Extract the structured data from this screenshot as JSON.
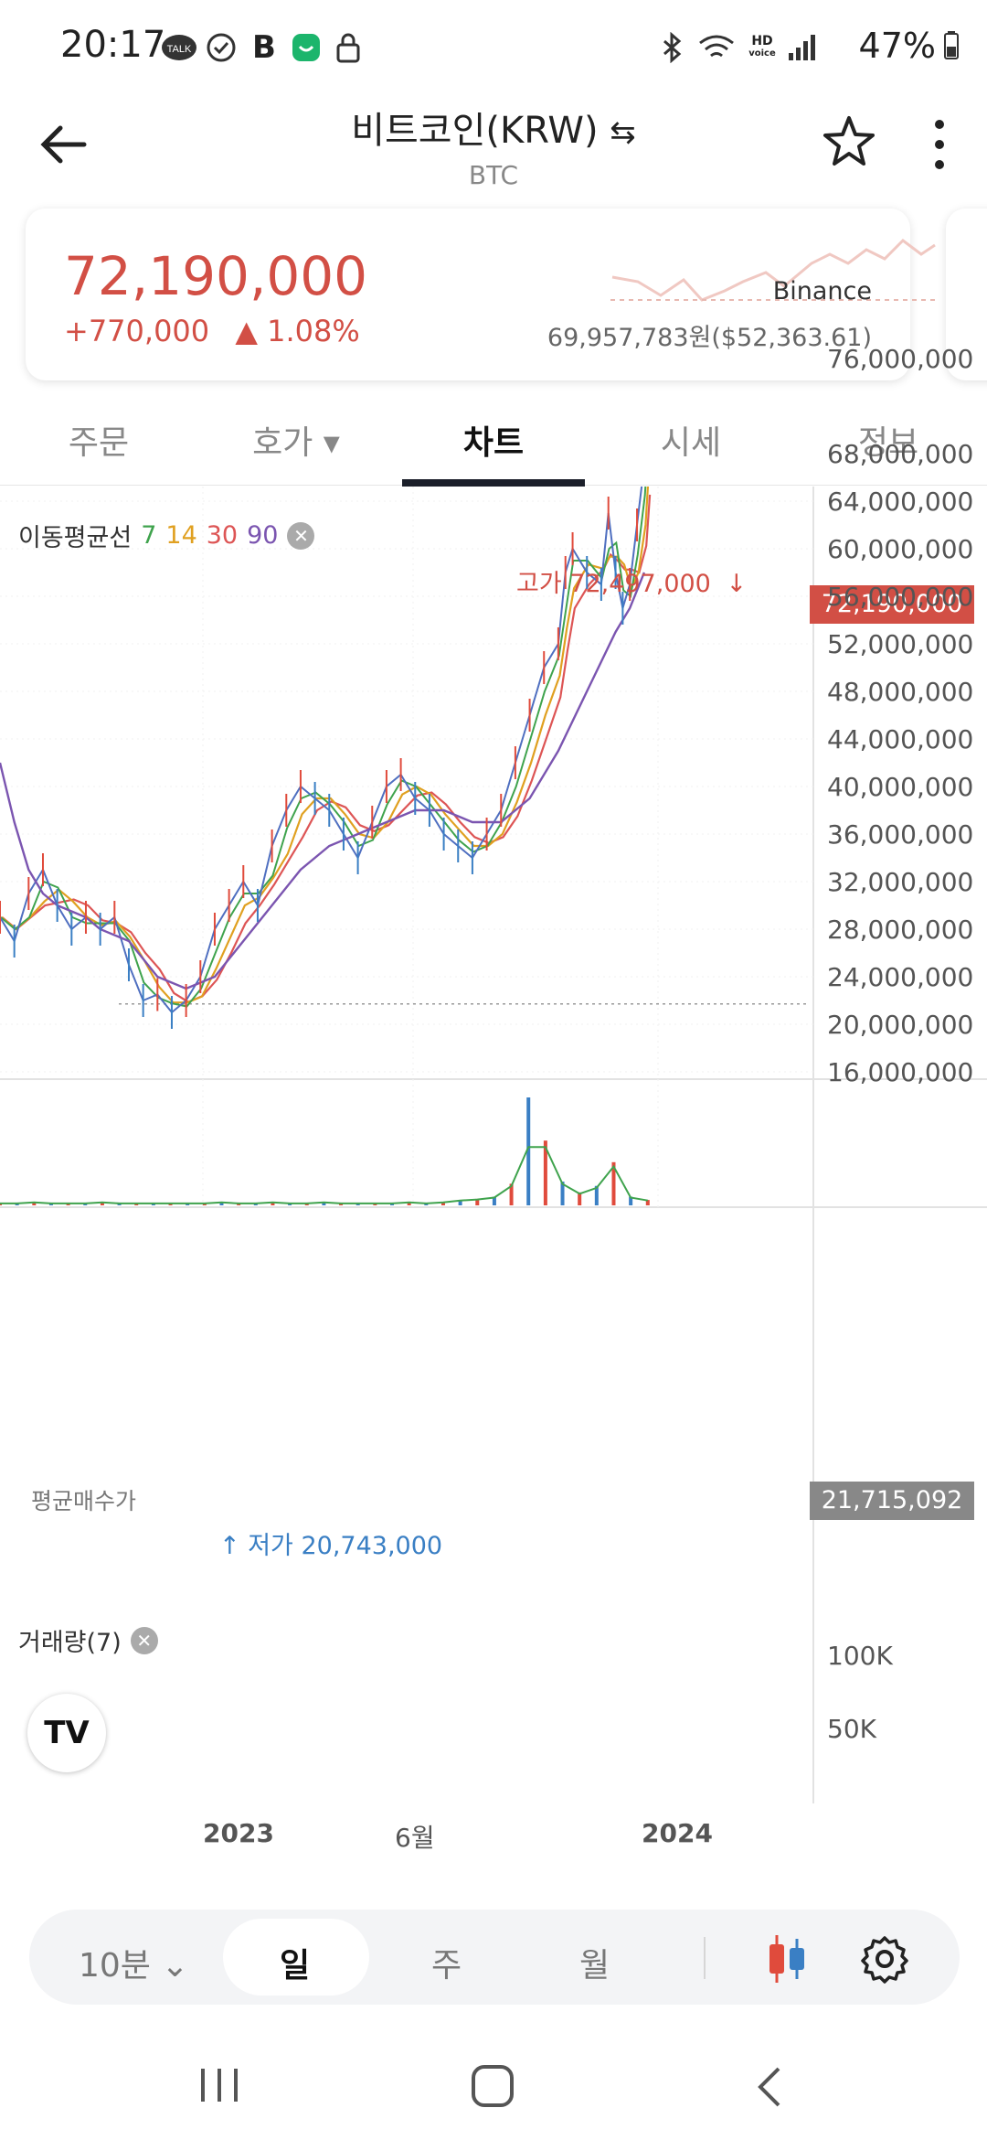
{
  "status_bar": {
    "time": "20:17",
    "battery": "47%",
    "icons": [
      "talk-icon",
      "check-circle-icon",
      "b-icon",
      "chat-icon",
      "lock-icon",
      "bluetooth-icon",
      "wifi-icon",
      "hd-voice-icon",
      "signal-icon",
      "battery-icon"
    ]
  },
  "header": {
    "title": "비트코인(KRW)",
    "subtitle": "BTC"
  },
  "price_card": {
    "price": "72,190,000",
    "change": "+770,000",
    "change_pct": "▲ 1.08%",
    "exchange": "Binance",
    "ref_price": "69,957,783원($52,363.61)",
    "colors": {
      "up": "#d24f45"
    }
  },
  "tabs": [
    {
      "label": "주문"
    },
    {
      "label": "호가 ▾"
    },
    {
      "label": "차트"
    },
    {
      "label": "시세"
    },
    {
      "label": "정보"
    }
  ],
  "chart_data": {
    "type": "line",
    "series": [
      {
        "name": "7",
        "color": "#3fa34d"
      },
      {
        "name": "14",
        "color": "#e0a020"
      },
      {
        "name": "30",
        "color": "#d55",
        "values_note": ""
      },
      {
        "name": "90",
        "color": "#7b55b0"
      }
    ],
    "x": [
      "2023",
      "6월",
      "2024"
    ],
    "y_ticks": [
      "76,000,000",
      "68,000,000",
      "64,000,000",
      "60,000,000",
      "56,000,000",
      "52,000,000",
      "48,000,000",
      "44,000,000",
      "40,000,000",
      "36,000,000",
      "32,000,000",
      "28,000,000",
      "24,000,000",
      "20,000,000",
      "16,000,000"
    ],
    "ylim": [
      16000000,
      76000000
    ],
    "current_price": "72,190,000",
    "avg_buy_price": "21,715,092",
    "high_label": "고가 72,497,000",
    "low_label": "저가 20,743,000",
    "avg_label": "평균매수가",
    "ma_label": "이동평균선",
    "volume_label": "거래량(7)",
    "volume_ticks": [
      "100K",
      "50K"
    ],
    "price_path": [
      [
        0.0,
        29
      ],
      [
        0.02,
        27
      ],
      [
        0.04,
        31
      ],
      [
        0.06,
        33
      ],
      [
        0.08,
        30
      ],
      [
        0.1,
        28
      ],
      [
        0.12,
        29
      ],
      [
        0.14,
        28
      ],
      [
        0.16,
        29
      ],
      [
        0.18,
        25
      ],
      [
        0.2,
        22
      ],
      [
        0.22,
        22.5
      ],
      [
        0.24,
        21
      ],
      [
        0.26,
        22
      ],
      [
        0.28,
        24
      ],
      [
        0.3,
        28
      ],
      [
        0.32,
        30
      ],
      [
        0.34,
        32
      ],
      [
        0.36,
        30
      ],
      [
        0.38,
        35
      ],
      [
        0.4,
        38
      ],
      [
        0.42,
        40
      ],
      [
        0.44,
        39
      ],
      [
        0.46,
        38
      ],
      [
        0.48,
        36
      ],
      [
        0.5,
        34
      ],
      [
        0.52,
        37
      ],
      [
        0.54,
        40
      ],
      [
        0.56,
        41
      ],
      [
        0.58,
        39
      ],
      [
        0.6,
        38
      ],
      [
        0.62,
        36
      ],
      [
        0.64,
        35
      ],
      [
        0.66,
        34
      ],
      [
        0.68,
        36
      ],
      [
        0.7,
        38
      ],
      [
        0.72,
        42
      ],
      [
        0.74,
        46
      ],
      [
        0.76,
        50
      ],
      [
        0.78,
        52
      ],
      [
        0.79,
        58
      ],
      [
        0.8,
        60
      ],
      [
        0.82,
        58
      ],
      [
        0.84,
        57
      ],
      [
        0.85,
        63
      ],
      [
        0.86,
        58
      ],
      [
        0.87,
        55
      ],
      [
        0.88,
        57
      ],
      [
        0.89,
        62
      ],
      [
        0.9,
        67
      ],
      [
        0.905,
        72.2
      ]
    ],
    "ma90_path": [
      [
        0.0,
        42
      ],
      [
        0.02,
        37
      ],
      [
        0.04,
        33
      ],
      [
        0.06,
        31
      ],
      [
        0.08,
        30
      ],
      [
        0.1,
        29.5
      ],
      [
        0.12,
        29
      ],
      [
        0.14,
        28
      ],
      [
        0.18,
        27
      ],
      [
        0.22,
        24
      ],
      [
        0.26,
        23
      ],
      [
        0.3,
        24
      ],
      [
        0.34,
        27
      ],
      [
        0.38,
        30
      ],
      [
        0.42,
        33
      ],
      [
        0.46,
        35
      ],
      [
        0.5,
        36
      ],
      [
        0.54,
        37
      ],
      [
        0.58,
        38
      ],
      [
        0.62,
        38
      ],
      [
        0.66,
        37
      ],
      [
        0.7,
        37
      ],
      [
        0.74,
        39
      ],
      [
        0.78,
        43
      ],
      [
        0.82,
        48
      ],
      [
        0.86,
        53
      ],
      [
        0.88,
        55
      ],
      [
        0.9,
        58
      ]
    ],
    "volume_values": [
      2,
      2,
      3,
      2,
      2,
      2,
      3,
      2,
      2,
      2,
      2,
      2,
      2,
      3,
      2,
      2,
      3,
      2,
      2,
      3,
      2,
      2,
      2,
      2,
      3,
      2,
      3,
      5,
      6,
      8,
      20,
      100,
      60,
      22,
      12,
      18,
      40,
      8,
      5
    ]
  },
  "bottom_bar": {
    "interval": "10분 ⌄",
    "items": [
      "일",
      "주",
      "월"
    ],
    "active": "일"
  }
}
